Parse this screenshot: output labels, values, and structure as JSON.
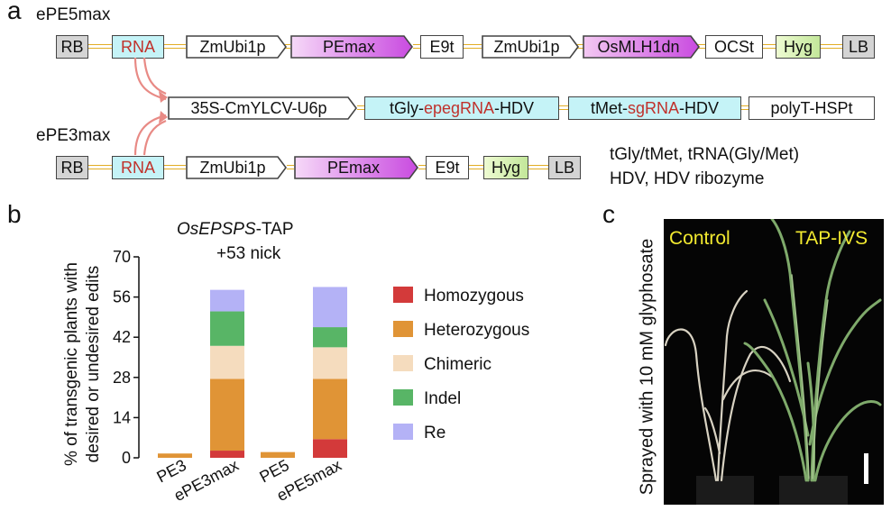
{
  "panel_a": {
    "letter": "a",
    "construct1": {
      "name": "ePE5max",
      "elements": [
        "RB",
        "RNA",
        "ZmUbi1p",
        "PEmax",
        "E9t",
        "ZmUbi1p",
        "OsMLH1dn",
        "OCSt",
        "Hyg",
        "LB"
      ]
    },
    "rna_cassette": {
      "promoter": "35S-CmYLCV-U6p",
      "pegrna": {
        "prefix": "tGly-",
        "highlight": "epegRNA",
        "suffix": "-HDV"
      },
      "sgrna": {
        "prefix": "tMet-",
        "highlight": "sgRNA",
        "suffix": "-HDV"
      },
      "terminator": "polyT-HSPt"
    },
    "construct2": {
      "name": "ePE3max",
      "elements": [
        "RB",
        "RNA",
        "ZmUbi1p",
        "PEmax",
        "E9t",
        "Hyg",
        "LB"
      ]
    },
    "legend_line1": "tGly/tMet, tRNA(Gly/Met)",
    "legend_line2": "HDV, HDV ribozyme",
    "colors": {
      "rna_text": "#c0312b",
      "link_line": "#e2ad25",
      "arrow": "#e88a85"
    }
  },
  "panel_b": {
    "letter": "b",
    "title_italic": "OsEPSPS",
    "title_rest": "-TAP",
    "subtitle": "+53 nick",
    "ylabel_line1": "% of transgenic plants with",
    "ylabel_line2": "desired or undesired edits",
    "chart_data": {
      "type": "bar",
      "stacked": true,
      "categories": [
        "PE3",
        "ePE3max",
        "PE5",
        "ePE5max"
      ],
      "ylim": [
        0,
        70
      ],
      "yticks": [
        0,
        14,
        28,
        42,
        56,
        70
      ],
      "series": [
        {
          "name": "Homozygous",
          "color": "#d33a3a",
          "values": [
            0,
            2.5,
            0,
            6.5
          ]
        },
        {
          "name": "Heterozygous",
          "color": "#e09436",
          "values": [
            1.5,
            25,
            2,
            21
          ]
        },
        {
          "name": "Chimeric",
          "color": "#f5dcbe",
          "values": [
            0,
            11.5,
            0,
            11
          ]
        },
        {
          "name": "Indel",
          "color": "#58b566",
          "values": [
            0,
            12,
            0,
            7
          ]
        },
        {
          "name": "Re",
          "color": "#b4b2f6",
          "values": [
            0,
            7.5,
            0,
            14
          ]
        }
      ]
    }
  },
  "panel_c": {
    "letter": "c",
    "side_label": "Sprayed with 10 mM glyphosate",
    "control_label": "Control",
    "treated_label": "TAP-IVS",
    "label_color": "#f3ea30"
  }
}
